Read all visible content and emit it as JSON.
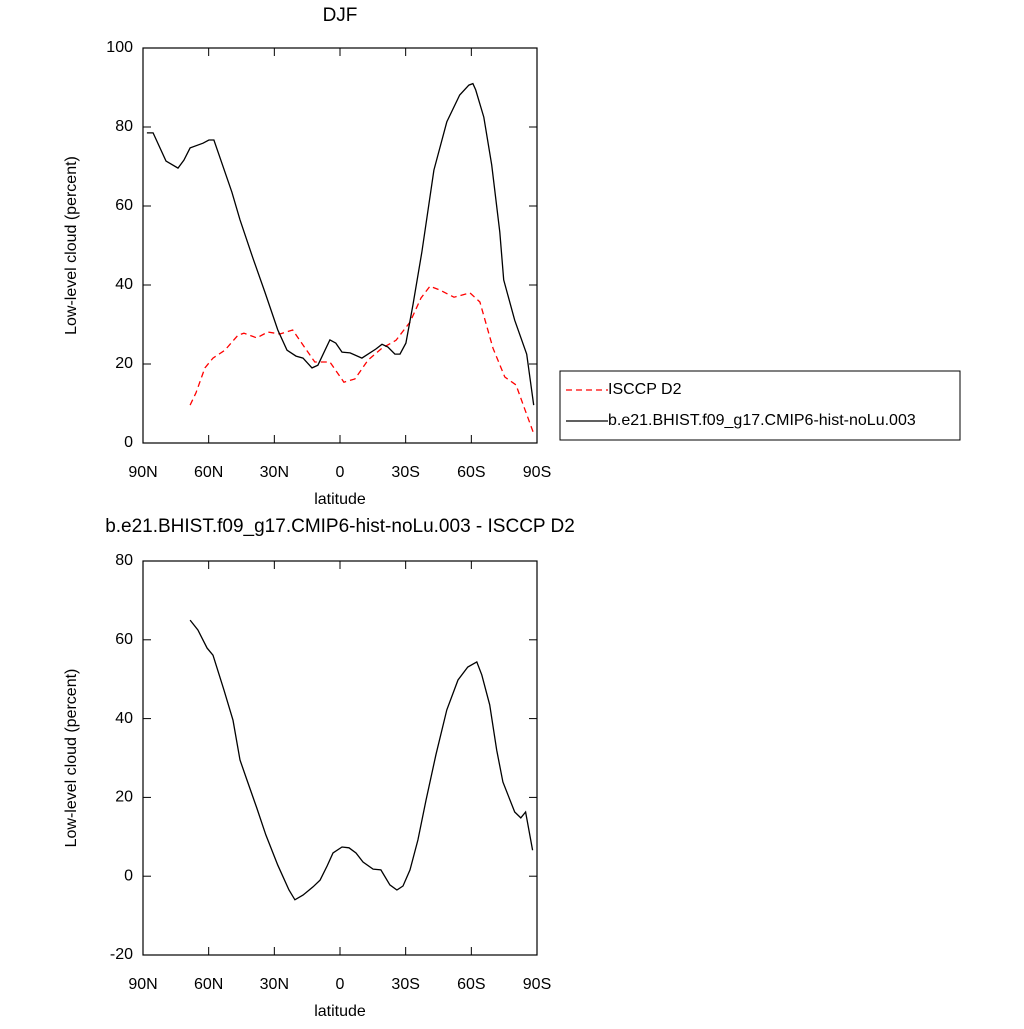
{
  "chart_data": [
    {
      "type": "line",
      "title": "DJF",
      "x_label": "latitude",
      "y_label": "Low-level cloud (percent)",
      "xlim": [
        90,
        -90
      ],
      "xticks": [
        {
          "value": 90,
          "label": "90N"
        },
        {
          "value": 60,
          "label": "60N"
        },
        {
          "value": 30,
          "label": "30N"
        },
        0,
        {
          "value": -30,
          "label": "30S"
        },
        {
          "value": -60,
          "label": "60S"
        },
        {
          "value": -90,
          "label": "90S"
        }
      ],
      "ylim": [
        0,
        100
      ],
      "yticks": [
        0,
        20,
        40,
        60,
        80,
        100
      ],
      "legend": "right",
      "series": [
        {
          "name": "ISCCP D2",
          "color": "#ff0000",
          "dash": true,
          "x": [
            68.5,
            65.8,
            61.7,
            58,
            52.6,
            46.6,
            43.9,
            38,
            33,
            27.5,
            21.6,
            16.9,
            11.5,
            4.6,
            -1.8,
            -6.8,
            -12.8,
            -19.2,
            -25.6,
            -32,
            -37,
            -41.1,
            -45.7,
            -52.1,
            -59.4,
            -63.9,
            -69.9,
            -75.3,
            -80.4,
            -84.5,
            -88.2
          ],
          "values": [
            9.6,
            12.7,
            19,
            21.5,
            23.5,
            27.3,
            27.8,
            26.6,
            28.1,
            27.6,
            28.6,
            24.8,
            20.5,
            20.5,
            15.4,
            16.2,
            21,
            24,
            26,
            30.6,
            36.7,
            39.7,
            38.7,
            36.9,
            38,
            35.7,
            24,
            16.7,
            14.7,
            8.4,
            2.8
          ]
        },
        {
          "name": "b.e21.BHIST.f09_g17.CMIP6-hist-noLu.003",
          "color": "#000000",
          "dash": false,
          "x": [
            88.2,
            85.4,
            79.5,
            74,
            71.3,
            68.5,
            62.6,
            59.9,
            57.6,
            49.4,
            45.7,
            39.8,
            34.3,
            28.4,
            24.2,
            20.1,
            16.9,
            12.8,
            10.1,
            4.6,
            1.9,
            -0.9,
            -4.6,
            -10,
            -16.4,
            -19.2,
            -21.9,
            -25.1,
            -27.4,
            -30.1,
            -33.3,
            -37.4,
            -42.9,
            -48.8,
            -54.7,
            -58.9,
            -60.7,
            -62,
            -65.7,
            -69.3,
            -73,
            -74.8,
            -79.8,
            -85.3,
            -88.5
          ],
          "values": [
            78.5,
            78.5,
            71.4,
            69.6,
            71.6,
            74.7,
            75.9,
            76.7,
            76.7,
            63.5,
            56.5,
            46.8,
            38.2,
            28.6,
            23.5,
            22,
            21.5,
            19,
            19.7,
            26.1,
            25.3,
            23,
            22.8,
            21.5,
            23.8,
            25,
            24.3,
            22.5,
            22.5,
            25.3,
            34.9,
            48.4,
            69.1,
            81.3,
            88.1,
            90.6,
            91,
            89.4,
            82.5,
            70.4,
            53.4,
            41.3,
            31.1,
            22.5,
            9.6
          ]
        }
      ]
    },
    {
      "type": "line",
      "title": "b.e21.BHIST.f09_g17.CMIP6-hist-noLu.003 - ISCCP D2",
      "x_label": "latitude",
      "y_label": "Low-level cloud (percent)",
      "xlim": [
        90,
        -90
      ],
      "xticks": [
        {
          "value": 90,
          "label": "90N"
        },
        {
          "value": 60,
          "label": "60N"
        },
        {
          "value": 30,
          "label": "30N"
        },
        0,
        {
          "value": -30,
          "label": "30S"
        },
        {
          "value": -60,
          "label": "60S"
        },
        {
          "value": -90,
          "label": "90S"
        }
      ],
      "ylim": [
        -20,
        80
      ],
      "yticks": [
        -20,
        0,
        20,
        40,
        60,
        80
      ],
      "series": [
        {
          "color": "#000000",
          "dash": false,
          "x": [
            68.5,
            64.9,
            60.7,
            58,
            53,
            48.9,
            45.7,
            42.5,
            38,
            33.9,
            28.4,
            23.3,
            20.6,
            16.9,
            12.3,
            9.1,
            5.9,
            3.2,
            -0.9,
            -4.1,
            -7.3,
            -10.5,
            -15.1,
            -18.7,
            -22.8,
            -26,
            -28.8,
            -32,
            -35.6,
            -39.3,
            -43.8,
            -48.8,
            -53.9,
            -58.4,
            -62.5,
            -64.8,
            -68.4,
            -71.6,
            -74.4,
            -79.8,
            -82.6,
            -84.8,
            -88
          ],
          "values": [
            65,
            62.5,
            57.9,
            56.1,
            47.2,
            39.6,
            29.5,
            24.4,
            17.3,
            10.5,
            2.8,
            -3.5,
            -6,
            -4.8,
            -2.7,
            -1,
            2.6,
            5.9,
            7.4,
            7.2,
            5.9,
            3.6,
            1.8,
            1.6,
            -2.2,
            -3.5,
            -2.5,
            1.6,
            9.2,
            19.3,
            30.8,
            42.2,
            49.8,
            53.1,
            54.4,
            51.1,
            43.5,
            32,
            23.9,
            16.3,
            14.8,
            16.3,
            6.6
          ]
        }
      ]
    }
  ]
}
